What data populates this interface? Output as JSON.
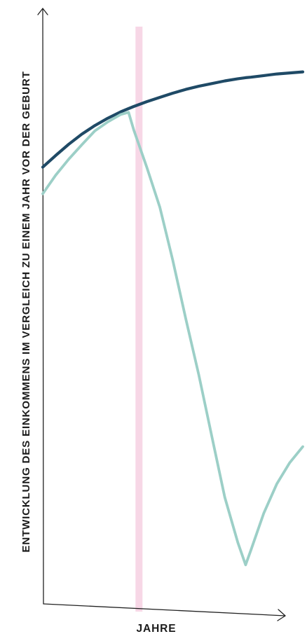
{
  "chart_data": {
    "type": "line",
    "title": "",
    "xlabel": "JAHRE",
    "ylabel": "ENTWICKLUNG DES EINKOMMENS IM VERGLEICH ZU EINEM JAHR VOR DER GEBURT",
    "grid": false,
    "legend": "none",
    "xlim": [
      0,
      100
    ],
    "ylim": [
      0,
      100
    ],
    "x": [
      0,
      5,
      10,
      15,
      20,
      25,
      30,
      33,
      35,
      40,
      45,
      50,
      55,
      60,
      65,
      70,
      75,
      78,
      80,
      85,
      90,
      95,
      100
    ],
    "series": [
      {
        "color": "#1f4a66",
        "values": [
          76.5,
          78.7,
          80.8,
          82.7,
          84.3,
          85.7,
          86.9,
          87.5,
          87.9,
          88.8,
          89.6,
          90.4,
          91.1,
          91.7,
          92.2,
          92.7,
          93.1,
          93.3,
          93.4,
          93.7,
          94.0,
          94.2,
          94.4
        ]
      },
      {
        "color": "#9ccfc7",
        "values": [
          71.5,
          75.0,
          78.0,
          80.7,
          83.3,
          85.0,
          86.4,
          86.8,
          83.5,
          76.5,
          69.0,
          59.0,
          48.0,
          37.5,
          26.0,
          14.5,
          6.0,
          1.8,
          4.5,
          11.5,
          17.0,
          21.0,
          24.0
        ]
      }
    ],
    "highlight": {
      "x": 37,
      "color": "#f7d7e6"
    }
  }
}
